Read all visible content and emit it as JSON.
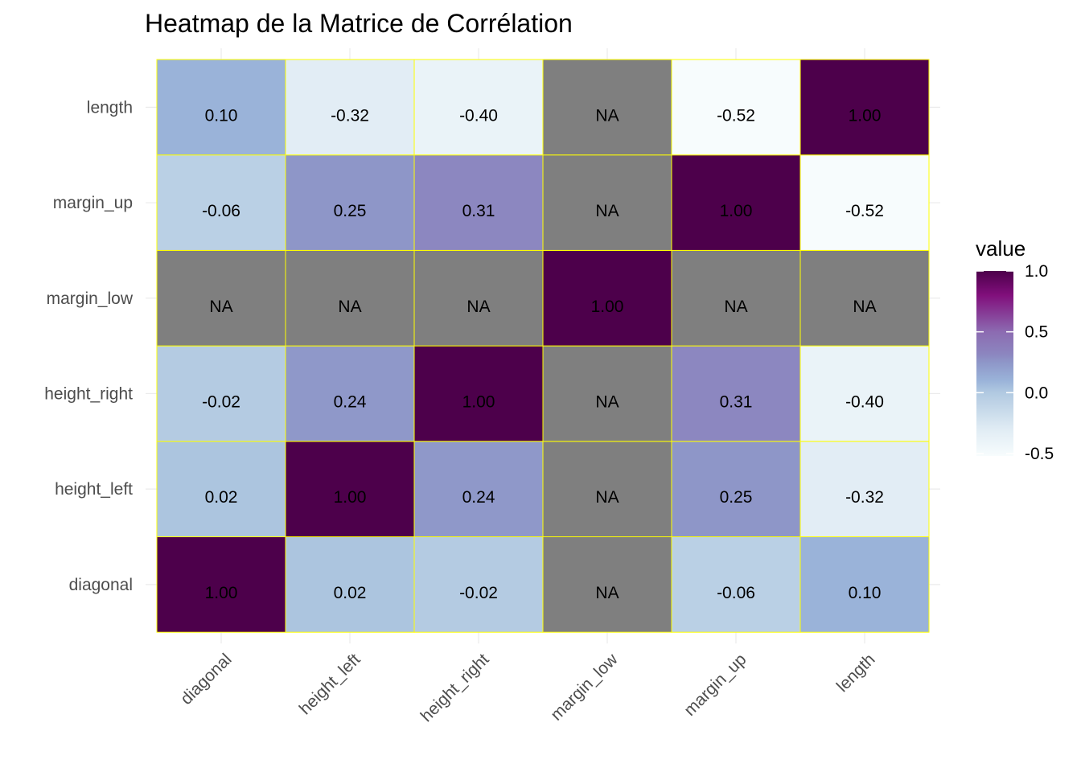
{
  "chart_data": {
    "type": "heatmap",
    "title": "Heatmap de la Matrice de Corrélation",
    "x_categories": [
      "diagonal",
      "height_left",
      "height_right",
      "margin_low",
      "margin_up",
      "length"
    ],
    "y_categories": [
      "diagonal",
      "height_left",
      "height_right",
      "margin_low",
      "margin_up",
      "length"
    ],
    "values": [
      [
        1.0,
        0.02,
        -0.02,
        null,
        -0.06,
        0.1
      ],
      [
        0.02,
        1.0,
        0.24,
        null,
        0.25,
        -0.32
      ],
      [
        -0.02,
        0.24,
        1.0,
        null,
        0.31,
        -0.4
      ],
      [
        null,
        null,
        null,
        1.0,
        null,
        null
      ],
      [
        -0.06,
        0.25,
        0.31,
        null,
        1.0,
        -0.52
      ],
      [
        0.1,
        -0.32,
        -0.4,
        null,
        -0.52,
        1.0
      ]
    ],
    "cell_labels": [
      [
        "1.00",
        "0.02",
        "-0.02",
        "NA",
        "-0.06",
        "0.10"
      ],
      [
        "0.02",
        "1.00",
        "0.24",
        "NA",
        "0.25",
        "-0.32"
      ],
      [
        "-0.02",
        "0.24",
        "1.00",
        "NA",
        "0.31",
        "-0.40"
      ],
      [
        "NA",
        "NA",
        "NA",
        "1.00",
        "NA",
        "NA"
      ],
      [
        "-0.06",
        "0.25",
        "0.31",
        "NA",
        "1.00",
        "-0.52"
      ],
      [
        "0.10",
        "-0.32",
        "-0.40",
        "NA",
        "-0.52",
        "1.00"
      ]
    ],
    "na_color": "#7f7f7f",
    "cell_border_color": "#ffff00",
    "colorscale": {
      "min": -0.52,
      "max": 1.0,
      "stops": [
        {
          "value": -0.52,
          "color": "#f7fcfd"
        },
        {
          "value": -0.3,
          "color": "#e0ecf4"
        },
        {
          "value": 0.0,
          "color": "#b1c9e1"
        },
        {
          "value": 0.1,
          "color": "#9ab3d9"
        },
        {
          "value": 0.25,
          "color": "#8e96c8"
        },
        {
          "value": 0.31,
          "color": "#8c87c0"
        },
        {
          "value": 0.5,
          "color": "#8c6bb1"
        },
        {
          "value": 0.8,
          "color": "#810f7c"
        },
        {
          "value": 1.0,
          "color": "#4d004b"
        }
      ]
    },
    "legend": {
      "title": "value",
      "ticks": [
        {
          "value": 1.0,
          "label": "1.0"
        },
        {
          "value": 0.5,
          "label": "0.5"
        },
        {
          "value": 0.0,
          "label": "0.0"
        },
        {
          "value": -0.5,
          "label": "-0.5"
        }
      ],
      "placement": "right"
    },
    "grid": true
  }
}
